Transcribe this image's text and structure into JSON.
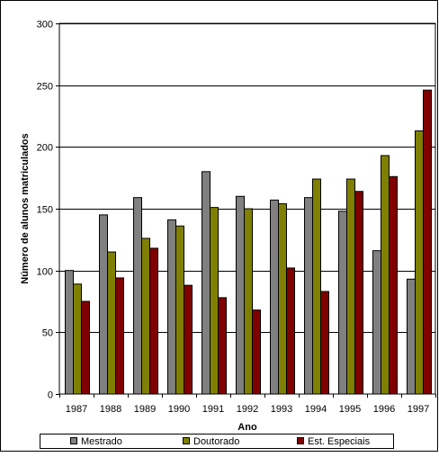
{
  "chart_data": {
    "type": "bar",
    "title": "",
    "xlabel": "Ano",
    "ylabel": "Número de alunos matriculados",
    "categories": [
      "1987",
      "1988",
      "1989",
      "1990",
      "1991",
      "1992",
      "1993",
      "1994",
      "1995",
      "1996",
      "1997"
    ],
    "ylim": [
      0,
      300
    ],
    "yticks": [
      "0",
      "50",
      "100",
      "150",
      "200",
      "250",
      "300"
    ],
    "grid": true,
    "legend_position": "bottom",
    "series": [
      {
        "name": "Mestrado",
        "color": "#808080",
        "values": [
          100,
          145,
          159,
          141,
          180,
          160,
          157,
          159,
          148,
          116,
          93
        ]
      },
      {
        "name": "Doutorado",
        "color": "#808000",
        "values": [
          89,
          115,
          126,
          136,
          151,
          150,
          154,
          174,
          174,
          193,
          213
        ]
      },
      {
        "name": "Est. Especiais",
        "color": "#800000",
        "values": [
          75,
          94,
          118,
          88,
          78,
          68,
          102,
          83,
          164,
          176,
          246
        ]
      }
    ]
  }
}
